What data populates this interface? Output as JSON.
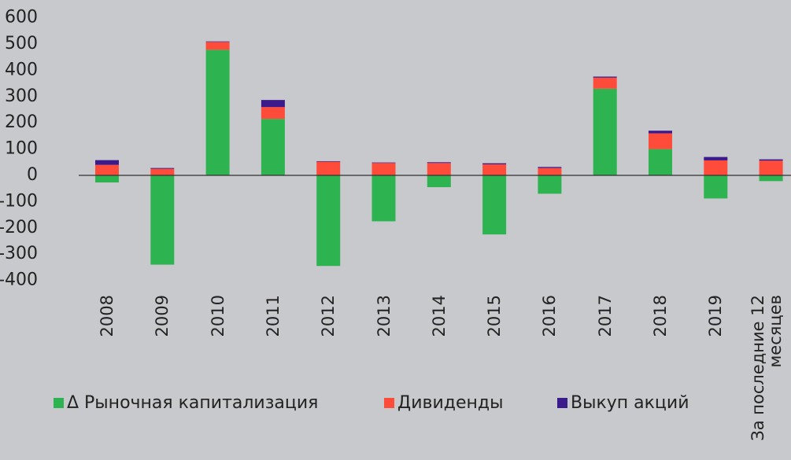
{
  "chart_data": {
    "type": "bar",
    "stacked": true,
    "categories": [
      "2008",
      "2009",
      "2010",
      "2011",
      "2012",
      "2013",
      "2014",
      "2015",
      "2016",
      "2017",
      "2018",
      "2019",
      "За последние 12 месяцев"
    ],
    "series": [
      {
        "name": "Δ Рыночная капитализация",
        "color": "#2db350",
        "values": [
          -27,
          -340,
          478,
          215,
          -345,
          -175,
          -45,
          -225,
          -70,
          330,
          100,
          -88,
          -22
        ]
      },
      {
        "name": "Дивиденды",
        "color": "#ff4b3a",
        "values": [
          40,
          25,
          30,
          45,
          52,
          47,
          47,
          42,
          28,
          42,
          60,
          57,
          56
        ]
      },
      {
        "name": "Выкуп акций",
        "color": "#3b1a8c",
        "values": [
          18,
          3,
          2,
          27,
          2,
          2,
          3,
          4,
          4,
          4,
          10,
          13,
          5
        ]
      }
    ],
    "ylim": [
      -400,
      600
    ],
    "yticks": [
      -400,
      -300,
      -200,
      -100,
      0,
      100,
      200,
      300,
      400,
      500,
      600
    ],
    "grid": false
  }
}
